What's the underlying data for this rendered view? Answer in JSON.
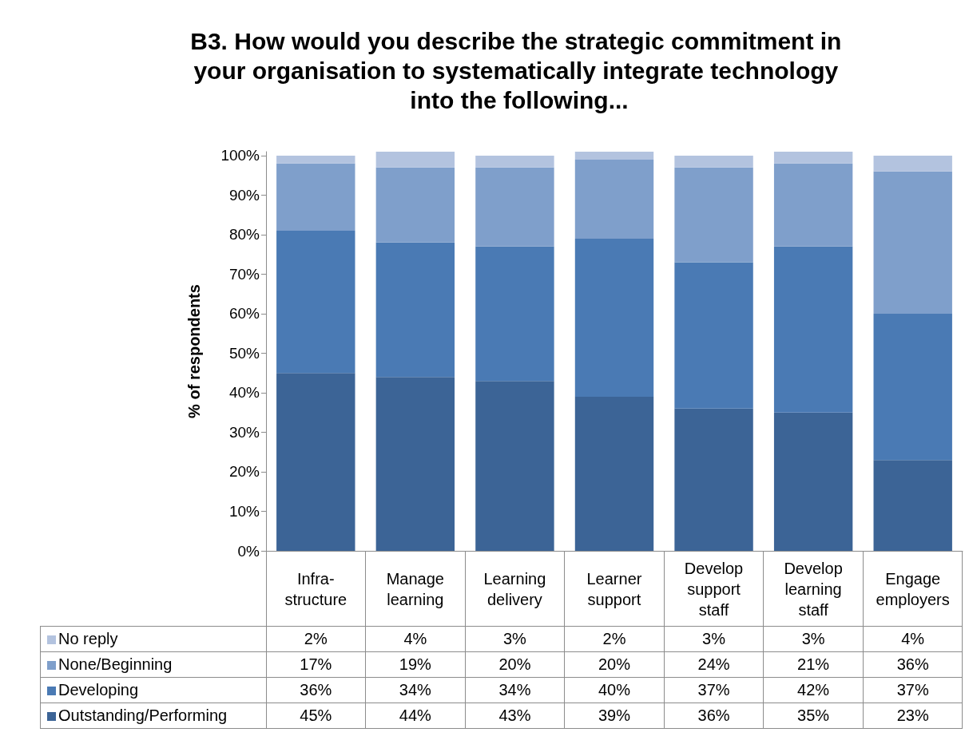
{
  "chart_data": {
    "type": "bar",
    "title": "B3. How would you describe the strategic commitment in your organisation to systematically integrate technology into the following...",
    "ylabel": "% of respondents",
    "categories": [
      "Infra-structure",
      "Manage learning",
      "Learning delivery",
      "Learner support",
      "Develop support staff",
      "Develop learning staff",
      "Engage employers"
    ],
    "stacked": true,
    "legend": "bottom",
    "grid": false,
    "ylim": [
      0,
      101
    ],
    "yticks": [
      {
        "value": 0,
        "label": "0%"
      },
      {
        "value": 10,
        "label": "10%"
      },
      {
        "value": 20,
        "label": "20%"
      },
      {
        "value": 30,
        "label": "30%"
      },
      {
        "value": 40,
        "label": "40%"
      },
      {
        "value": 50,
        "label": "50%"
      },
      {
        "value": 60,
        "label": "60%"
      },
      {
        "value": 70,
        "label": "70%"
      },
      {
        "value": 80,
        "label": "80%"
      },
      {
        "value": 90,
        "label": "90%"
      },
      {
        "value": 100,
        "label": "100%"
      }
    ],
    "series": [
      {
        "name": "Outstanding/Performing",
        "color": "#3c6496",
        "values": [
          45,
          44,
          43,
          39,
          36,
          35,
          23
        ],
        "value_labels": [
          "45%",
          "44%",
          "43%",
          "39%",
          "36%",
          "35%",
          "23%"
        ]
      },
      {
        "name": "Developing",
        "color": "#4a7ab4",
        "values": [
          36,
          34,
          34,
          40,
          37,
          42,
          37
        ],
        "value_labels": [
          "36%",
          "34%",
          "34%",
          "40%",
          "37%",
          "42%",
          "37%"
        ]
      },
      {
        "name": "None/Beginning",
        "color": "#7f9fcb",
        "values": [
          17,
          19,
          20,
          20,
          24,
          21,
          36
        ],
        "value_labels": [
          "17%",
          "19%",
          "20%",
          "20%",
          "24%",
          "21%",
          "36%"
        ]
      },
      {
        "name": "No reply",
        "color": "#b3c3df",
        "values": [
          2,
          4,
          3,
          2,
          3,
          3,
          4
        ],
        "value_labels": [
          "2%",
          "4%",
          "3%",
          "2%",
          "3%",
          "3%",
          "4%"
        ]
      }
    ]
  }
}
